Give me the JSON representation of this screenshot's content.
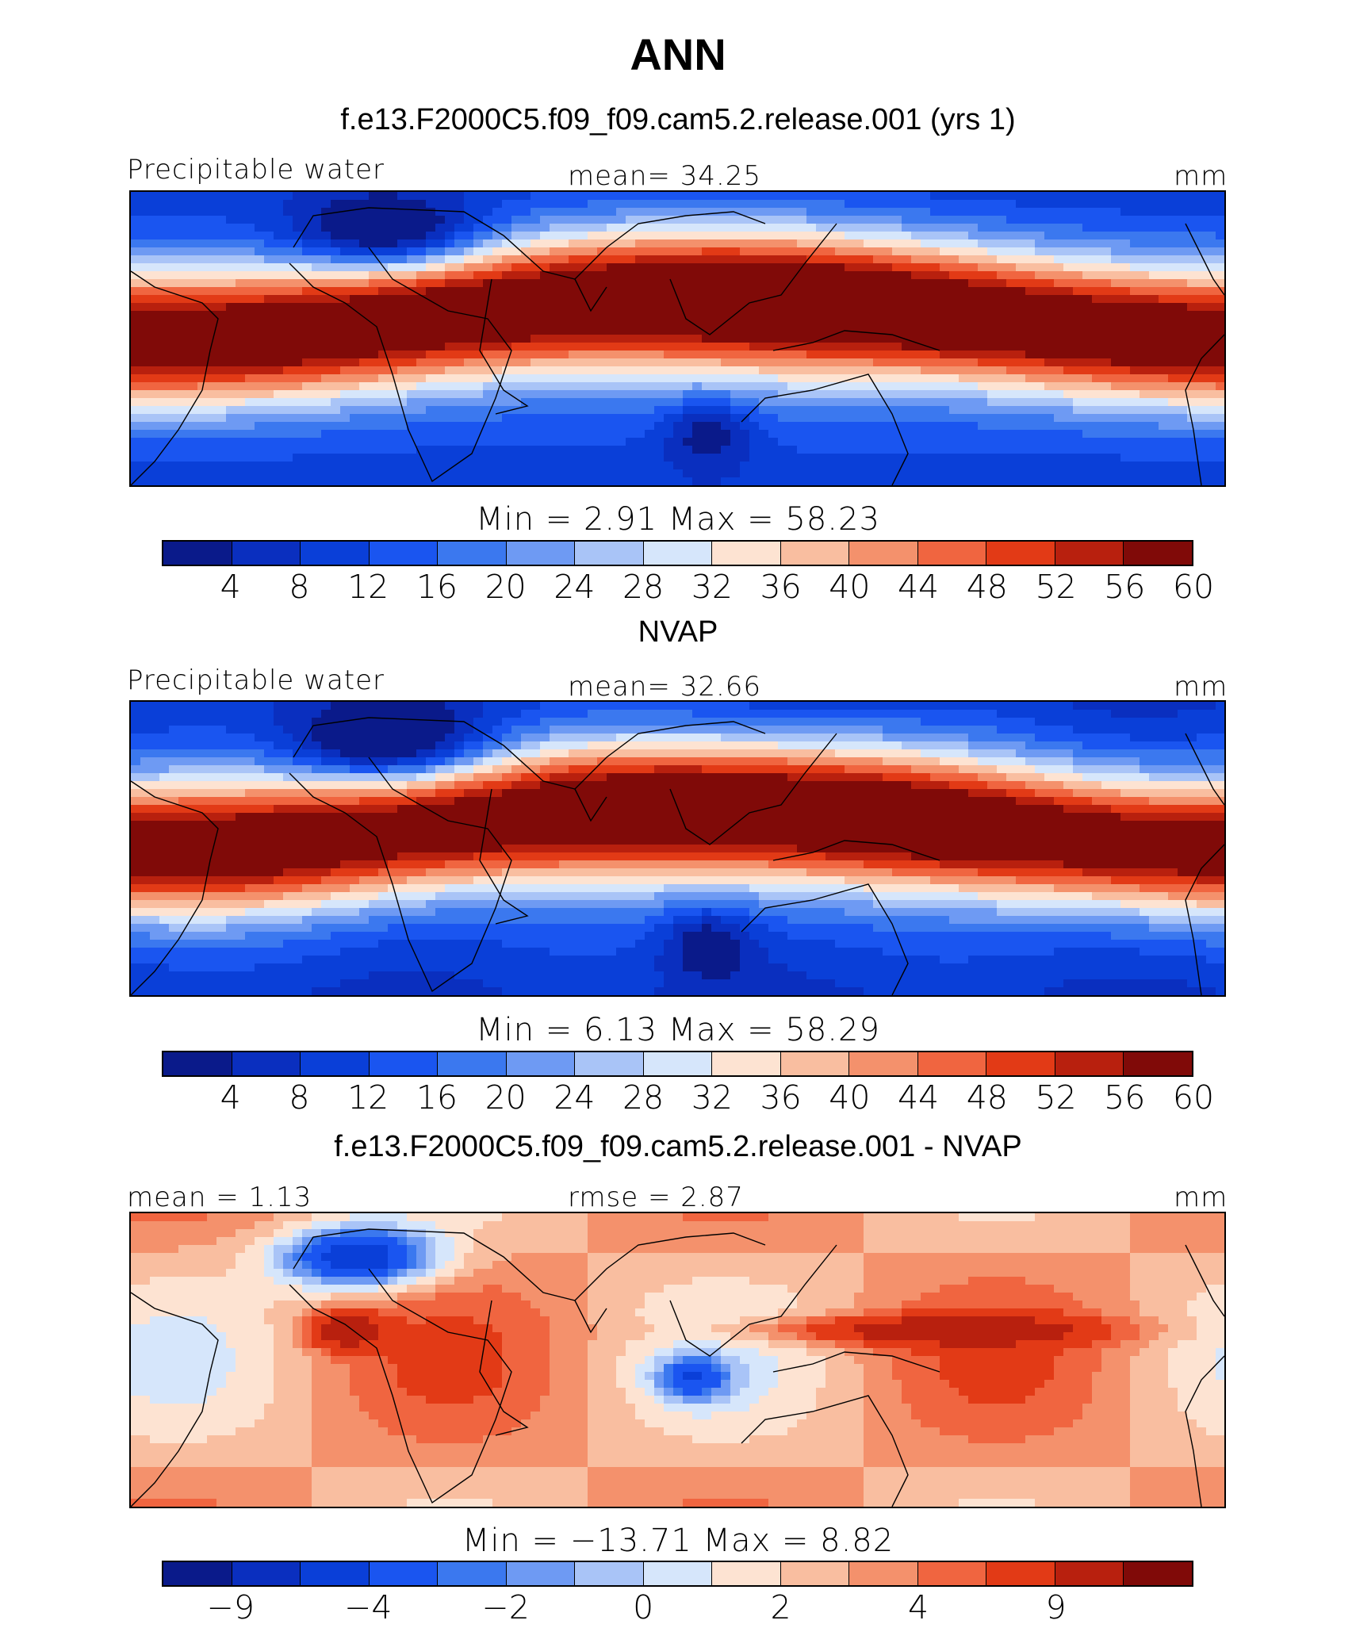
{
  "title": "ANN",
  "palette": [
    "#0a1a8a",
    "#0a2fbf",
    "#0a3fd8",
    "#1a55f0",
    "#3b78ef",
    "#6e9af3",
    "#a9c4f7",
    "#d6e6fb",
    "#fde3d2",
    "#f9bea0",
    "#f4916c",
    "#f06540",
    "#e23a16",
    "#b8200e",
    "#800a08"
  ],
  "panels": [
    {
      "title": "f.e13.F2000C5.f09_f09.cam5.2.release.001 (yrs 1)",
      "left_label": "Precipitable water",
      "center_label": "mean=   34.25",
      "units": "mm",
      "minmax": "Min  =     2.91  Max  =    58.23",
      "ticks": [
        "4",
        "8",
        "12",
        "16",
        "20",
        "24",
        "28",
        "32",
        "36",
        "40",
        "44",
        "48",
        "52",
        "56",
        "60"
      ],
      "field": "model"
    },
    {
      "title": "NVAP",
      "left_label": "Precipitable water",
      "center_label": "mean=   32.66",
      "units": "mm",
      "minmax": "Min  =     6.13  Max  =    58.29",
      "ticks": [
        "4",
        "8",
        "12",
        "16",
        "20",
        "24",
        "28",
        "32",
        "36",
        "40",
        "44",
        "48",
        "52",
        "56",
        "60"
      ],
      "field": "obs"
    },
    {
      "title": "f.e13.F2000C5.f09_f09.cam5.2.release.001 - NVAP",
      "left_label": "mean  =    1.13",
      "center_label": "rmse  =    2.87",
      "units": "mm",
      "minmax": "Min  = −13.71  Max  =     8.82",
      "ticks": [
        "−9",
        "−4",
        "−2",
        "0",
        "2",
        "4",
        "9"
      ],
      "field": "diff"
    }
  ]
}
